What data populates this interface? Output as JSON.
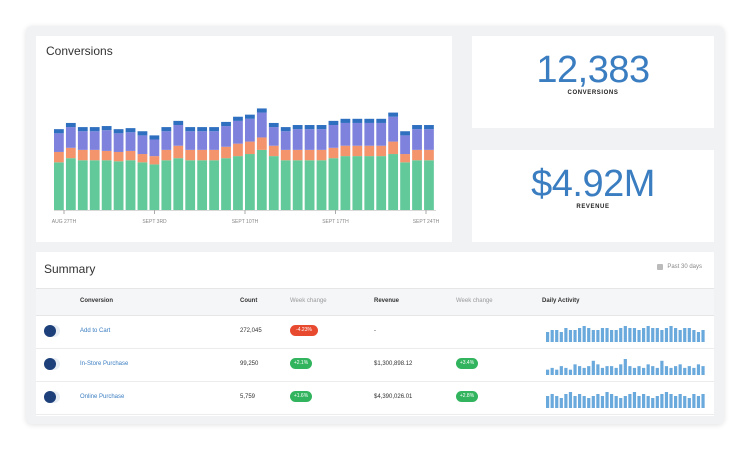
{
  "colors": {
    "accent": "#3a7dc0",
    "series_green": "#62c99a",
    "series_orange": "#f3946d",
    "series_purple": "#7f82dc",
    "series_blue": "#2f6fbf",
    "pill_red": "#e84a2f",
    "pill_green": "#31b45d",
    "spark": "#6aa9dc"
  },
  "chart": {
    "title": "Conversions"
  },
  "chart_data": {
    "type": "bar",
    "stacked": true,
    "title": "Conversions",
    "categories": [
      "1",
      "2",
      "3",
      "4",
      "5",
      "6",
      "7",
      "8",
      "9",
      "10",
      "11",
      "12",
      "13",
      "14",
      "15",
      "16",
      "17",
      "18",
      "19",
      "20",
      "21",
      "22",
      "23",
      "24",
      "25",
      "26",
      "27",
      "28",
      "29",
      "30",
      "31",
      "32"
    ],
    "x_tick_labels": [
      "AUG 27TH",
      "SEPT 3RD",
      "SEPT 10TH",
      "SEPT 17TH",
      "SEPT 24TH"
    ],
    "ylim": [
      0,
      110
    ],
    "grid": false,
    "series": [
      {
        "values": [
          46,
          50,
          48,
          48,
          48,
          47,
          48,
          46,
          44,
          48,
          50,
          48,
          48,
          48,
          50,
          52,
          54,
          58,
          52,
          48,
          48,
          48,
          48,
          50,
          52,
          52,
          52,
          52,
          54,
          46,
          48,
          48
        ]
      },
      {
        "values": [
          10,
          10,
          10,
          10,
          9,
          9,
          9,
          8,
          8,
          10,
          12,
          10,
          10,
          10,
          11,
          12,
          12,
          12,
          10,
          10,
          10,
          10,
          10,
          10,
          10,
          10,
          10,
          10,
          12,
          8,
          10,
          10
        ]
      },
      {
        "values": [
          18,
          20,
          18,
          18,
          20,
          18,
          18,
          18,
          16,
          18,
          20,
          18,
          18,
          18,
          20,
          22,
          22,
          24,
          18,
          18,
          20,
          20,
          20,
          22,
          22,
          22,
          22,
          22,
          24,
          18,
          20,
          20
        ]
      },
      {
        "values": [
          4,
          4,
          4,
          4,
          4,
          4,
          4,
          4,
          4,
          4,
          4,
          4,
          4,
          4,
          4,
          4,
          4,
          4,
          4,
          4,
          4,
          4,
          4,
          4,
          4,
          4,
          4,
          4,
          4,
          4,
          4,
          4
        ]
      }
    ]
  },
  "kpis": [
    {
      "value": "12,383",
      "label": "CONVERSIONS"
    },
    {
      "value": "$4.92M",
      "label": "REVENUE"
    }
  ],
  "summary": {
    "title": "Summary",
    "range": "Past 30 days",
    "headers": {
      "conversion": "Conversion",
      "count": "Count",
      "count_change": "Week change",
      "revenue": "Revenue",
      "revenue_change": "Week change",
      "daily": "Daily Activity"
    },
    "rows": [
      {
        "name": "Add to Cart",
        "count": "272,045",
        "count_change": "-4.23%",
        "count_change_status": "down",
        "revenue": "-",
        "revenue_change": "",
        "spark": [
          5,
          6,
          6,
          5,
          7,
          6,
          6,
          7,
          8,
          7,
          6,
          6,
          7,
          7,
          6,
          6,
          7,
          8,
          7,
          7,
          6,
          7,
          8,
          7,
          7,
          6,
          7,
          8,
          7,
          6,
          7,
          7,
          6,
          5,
          6
        ]
      },
      {
        "name": "In-Store Purchase",
        "count": "99,250",
        "count_change": "+2.1%",
        "count_change_status": "up",
        "revenue": "$1,300,898.12",
        "revenue_change": "+3.4%",
        "revenue_change_status": "up",
        "spark": [
          3,
          4,
          3,
          5,
          4,
          3,
          6,
          5,
          4,
          5,
          8,
          6,
          4,
          5,
          5,
          4,
          6,
          9,
          5,
          4,
          5,
          4,
          6,
          5,
          4,
          8,
          5,
          4,
          5,
          6,
          4,
          5,
          4,
          6,
          5
        ]
      },
      {
        "name": "Online Purchase",
        "count": "5,759",
        "count_change": "+1.6%",
        "count_change_status": "up",
        "revenue": "$4,390,026.01",
        "revenue_change": "+2.8%",
        "revenue_change_status": "up",
        "spark": [
          6,
          7,
          6,
          5,
          7,
          8,
          6,
          7,
          6,
          5,
          6,
          7,
          6,
          8,
          7,
          6,
          5,
          6,
          7,
          8,
          6,
          7,
          6,
          5,
          6,
          7,
          8,
          7,
          6,
          7,
          6,
          5,
          7,
          6,
          7
        ]
      }
    ]
  }
}
